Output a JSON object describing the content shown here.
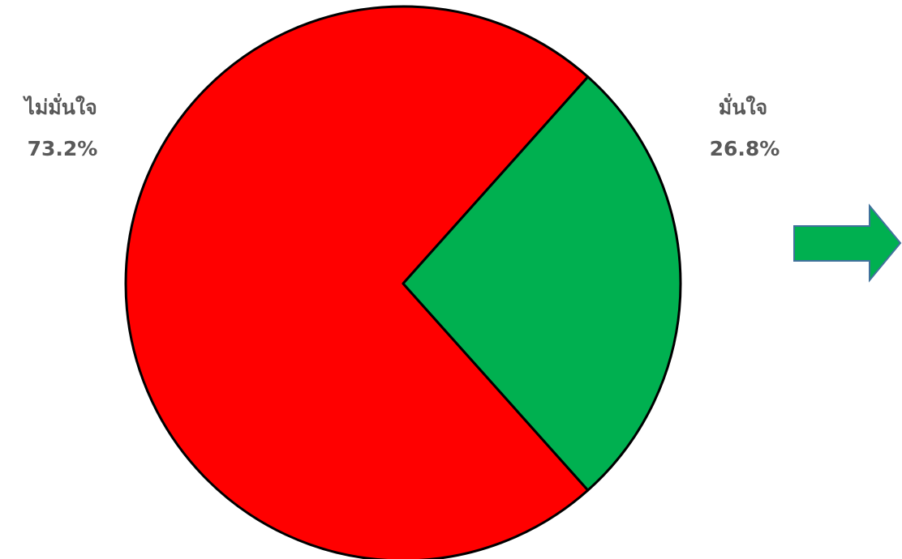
{
  "chart_data": {
    "type": "pie",
    "title": "",
    "categories": [
      "ไม่มั่นใจ",
      "มั่นใจ"
    ],
    "values": [
      73.2,
      26.8
    ],
    "value_labels": [
      "73.2%",
      "26.8%"
    ],
    "colors": [
      "#ff0000",
      "#00b050"
    ],
    "legend": "none"
  },
  "arrow": {
    "icon": "right-arrow-icon",
    "fill_color": "#00b050",
    "stroke_color": "#41719c"
  }
}
